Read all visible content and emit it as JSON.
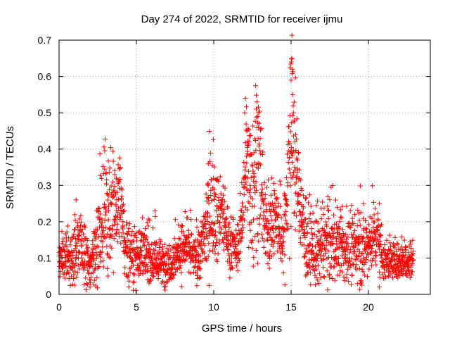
{
  "chart_data": {
    "type": "scatter",
    "title": "Day 274 of 2022, SRMTID for receiver ijmu",
    "xlabel": "GPS time / hours",
    "ylabel": "SRMTID / TECUs",
    "xlim": [
      0,
      24
    ],
    "ylim": [
      0,
      0.7
    ],
    "x_ticks": [
      "0",
      "5",
      "10",
      "15",
      "20"
    ],
    "x_tick_values": [
      0,
      5,
      10,
      15,
      20
    ],
    "y_ticks": [
      "0",
      "0.1",
      "0.2",
      "0.3",
      "0.4",
      "0.5",
      "0.6",
      "0.7"
    ],
    "y_tick_values": [
      0,
      0.1,
      0.2,
      0.3,
      0.4,
      0.5,
      0.6,
      0.7
    ],
    "grid": true,
    "marker": "+",
    "color": "#ff0000",
    "x_range_of_data": [
      0,
      22.9
    ],
    "profile_note": "Approximate envelope of the plotted SRMTID samples (data units): time in hours, typical level and spread in TECU",
    "profile": [
      {
        "x": 0.0,
        "level": 0.09,
        "spread": 0.03
      },
      {
        "x": 1.0,
        "level": 0.11,
        "spread": 0.05
      },
      {
        "x": 1.3,
        "level": 0.15,
        "spread": 0.06
      },
      {
        "x": 2.0,
        "level": 0.07,
        "spread": 0.03
      },
      {
        "x": 2.7,
        "level": 0.18,
        "spread": 0.08
      },
      {
        "x": 3.0,
        "level": 0.25,
        "spread": 0.09
      },
      {
        "x": 3.5,
        "level": 0.2,
        "spread": 0.08
      },
      {
        "x": 3.9,
        "level": 0.27,
        "spread": 0.07
      },
      {
        "x": 4.3,
        "level": 0.12,
        "spread": 0.05
      },
      {
        "x": 5.5,
        "level": 0.11,
        "spread": 0.04
      },
      {
        "x": 6.8,
        "level": 0.08,
        "spread": 0.03
      },
      {
        "x": 8.2,
        "level": 0.13,
        "spread": 0.04
      },
      {
        "x": 9.0,
        "level": 0.09,
        "spread": 0.03
      },
      {
        "x": 9.7,
        "level": 0.22,
        "spread": 0.08
      },
      {
        "x": 10.5,
        "level": 0.22,
        "spread": 0.06
      },
      {
        "x": 11.0,
        "level": 0.14,
        "spread": 0.04
      },
      {
        "x": 11.6,
        "level": 0.12,
        "spread": 0.03
      },
      {
        "x": 12.1,
        "level": 0.35,
        "spread": 0.1
      },
      {
        "x": 12.5,
        "level": 0.3,
        "spread": 0.12
      },
      {
        "x": 12.8,
        "level": 0.38,
        "spread": 0.12
      },
      {
        "x": 13.3,
        "level": 0.18,
        "spread": 0.06
      },
      {
        "x": 14.0,
        "level": 0.2,
        "spread": 0.05
      },
      {
        "x": 14.5,
        "level": 0.14,
        "spread": 0.05
      },
      {
        "x": 15.0,
        "level": 0.45,
        "spread": 0.15
      },
      {
        "x": 15.4,
        "level": 0.32,
        "spread": 0.08
      },
      {
        "x": 15.9,
        "level": 0.14,
        "spread": 0.05
      },
      {
        "x": 16.6,
        "level": 0.1,
        "spread": 0.05
      },
      {
        "x": 17.2,
        "level": 0.15,
        "spread": 0.06
      },
      {
        "x": 18.5,
        "level": 0.12,
        "spread": 0.05
      },
      {
        "x": 19.8,
        "level": 0.13,
        "spread": 0.05
      },
      {
        "x": 20.6,
        "level": 0.17,
        "spread": 0.05
      },
      {
        "x": 21.0,
        "level": 0.09,
        "spread": 0.03
      },
      {
        "x": 22.9,
        "level": 0.1,
        "spread": 0.03
      }
    ],
    "highlights": [
      {
        "x": 15.05,
        "y": 0.65
      },
      {
        "x": 15.02,
        "y": 0.64
      },
      {
        "x": 15.08,
        "y": 0.62
      },
      {
        "x": 15.0,
        "y": 0.59
      },
      {
        "x": 15.1,
        "y": 0.55
      },
      {
        "x": 15.15,
        "y": 0.5
      },
      {
        "x": 12.05,
        "y": 0.54
      },
      {
        "x": 12.0,
        "y": 0.5
      },
      {
        "x": 12.15,
        "y": 0.45
      },
      {
        "x": 12.8,
        "y": 0.53
      },
      {
        "x": 12.75,
        "y": 0.51
      },
      {
        "x": 12.85,
        "y": 0.49
      },
      {
        "x": 12.9,
        "y": 0.46
      },
      {
        "x": 12.2,
        "y": 0.41
      },
      {
        "x": 12.6,
        "y": 0.39
      },
      {
        "x": 9.65,
        "y": 0.36
      },
      {
        "x": 9.75,
        "y": 0.365
      },
      {
        "x": 2.95,
        "y": 0.345
      },
      {
        "x": 3.05,
        "y": 0.335
      },
      {
        "x": 3.6,
        "y": 0.33
      },
      {
        "x": 3.7,
        "y": 0.32
      },
      {
        "x": 3.9,
        "y": 0.31
      },
      {
        "x": 15.4,
        "y": 0.37
      },
      {
        "x": 15.25,
        "y": 0.42
      },
      {
        "x": 1.1,
        "y": 0.26
      },
      {
        "x": 20.7,
        "y": 0.25
      },
      {
        "x": 6.2,
        "y": 0.23
      },
      {
        "x": 6.8,
        "y": 0.02
      },
      {
        "x": 16.8,
        "y": 0.03
      },
      {
        "x": 20.7,
        "y": 0.02
      },
      {
        "x": 2.0,
        "y": 0.02
      }
    ]
  }
}
